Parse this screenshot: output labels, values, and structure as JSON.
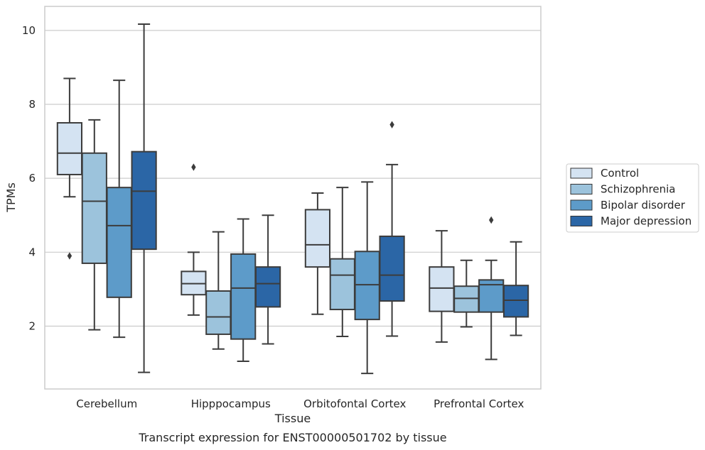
{
  "chart_data": {
    "type": "boxplot",
    "title": "",
    "caption": "Transcript expression for ENST00000501702 by tissue",
    "xlabel": "Tissue",
    "ylabel": "TPMs",
    "ylim": [
      0.3,
      10.65
    ],
    "yticks": [
      2,
      4,
      6,
      8,
      10
    ],
    "grid": "horizontal",
    "legend_position": "right",
    "categories": [
      "Cerebellum",
      "Hipppocampus",
      "Orbitofontal Cortex",
      "Prefrontal Cortex"
    ],
    "series": [
      {
        "name": "Control",
        "color": "#d4e3f2",
        "boxes": [
          {
            "whisker_low": 5.5,
            "q1": 6.1,
            "median": 6.68,
            "q3": 7.5,
            "whisker_high": 8.7,
            "outliers": [
              3.9
            ]
          },
          {
            "whisker_low": 2.3,
            "q1": 2.85,
            "median": 3.15,
            "q3": 3.48,
            "whisker_high": 4.0,
            "outliers": [
              6.3
            ]
          },
          {
            "whisker_low": 2.32,
            "q1": 3.6,
            "median": 4.2,
            "q3": 5.15,
            "whisker_high": 5.6,
            "outliers": []
          },
          {
            "whisker_low": 1.57,
            "q1": 2.4,
            "median": 3.03,
            "q3": 3.6,
            "whisker_high": 4.58,
            "outliers": []
          }
        ]
      },
      {
        "name": "Schizophrenia",
        "color": "#9cc3dc",
        "boxes": [
          {
            "whisker_low": 1.9,
            "q1": 3.7,
            "median": 5.38,
            "q3": 6.68,
            "whisker_high": 7.58,
            "outliers": []
          },
          {
            "whisker_low": 1.38,
            "q1": 1.78,
            "median": 2.25,
            "q3": 2.95,
            "whisker_high": 4.55,
            "outliers": []
          },
          {
            "whisker_low": 1.72,
            "q1": 2.45,
            "median": 3.38,
            "q3": 3.82,
            "whisker_high": 5.75,
            "outliers": []
          },
          {
            "whisker_low": 1.98,
            "q1": 2.38,
            "median": 2.75,
            "q3": 3.08,
            "whisker_high": 3.78,
            "outliers": []
          }
        ]
      },
      {
        "name": "Bipolar disorder",
        "color": "#5d9bc9",
        "boxes": [
          {
            "whisker_low": 1.7,
            "q1": 2.78,
            "median": 4.72,
            "q3": 5.75,
            "whisker_high": 8.65,
            "outliers": []
          },
          {
            "whisker_low": 1.05,
            "q1": 1.65,
            "median": 3.03,
            "q3": 3.95,
            "whisker_high": 4.9,
            "outliers": []
          },
          {
            "whisker_low": 0.72,
            "q1": 2.18,
            "median": 3.12,
            "q3": 4.02,
            "whisker_high": 5.9,
            "outliers": []
          },
          {
            "whisker_low": 1.1,
            "q1": 2.38,
            "median": 3.12,
            "q3": 3.25,
            "whisker_high": 3.78,
            "outliers": [
              4.87
            ]
          }
        ]
      },
      {
        "name": "Major depression",
        "color": "#2b66a6",
        "boxes": [
          {
            "whisker_low": 0.75,
            "q1": 4.08,
            "median": 5.65,
            "q3": 6.72,
            "whisker_high": 10.17,
            "outliers": []
          },
          {
            "whisker_low": 1.52,
            "q1": 2.52,
            "median": 3.15,
            "q3": 3.6,
            "whisker_high": 5.0,
            "outliers": []
          },
          {
            "whisker_low": 1.73,
            "q1": 2.68,
            "median": 3.38,
            "q3": 4.43,
            "whisker_high": 6.37,
            "outliers": [
              7.45
            ]
          },
          {
            "whisker_low": 1.75,
            "q1": 2.25,
            "median": 2.7,
            "q3": 3.1,
            "whisker_high": 4.28,
            "outliers": []
          }
        ]
      }
    ]
  }
}
